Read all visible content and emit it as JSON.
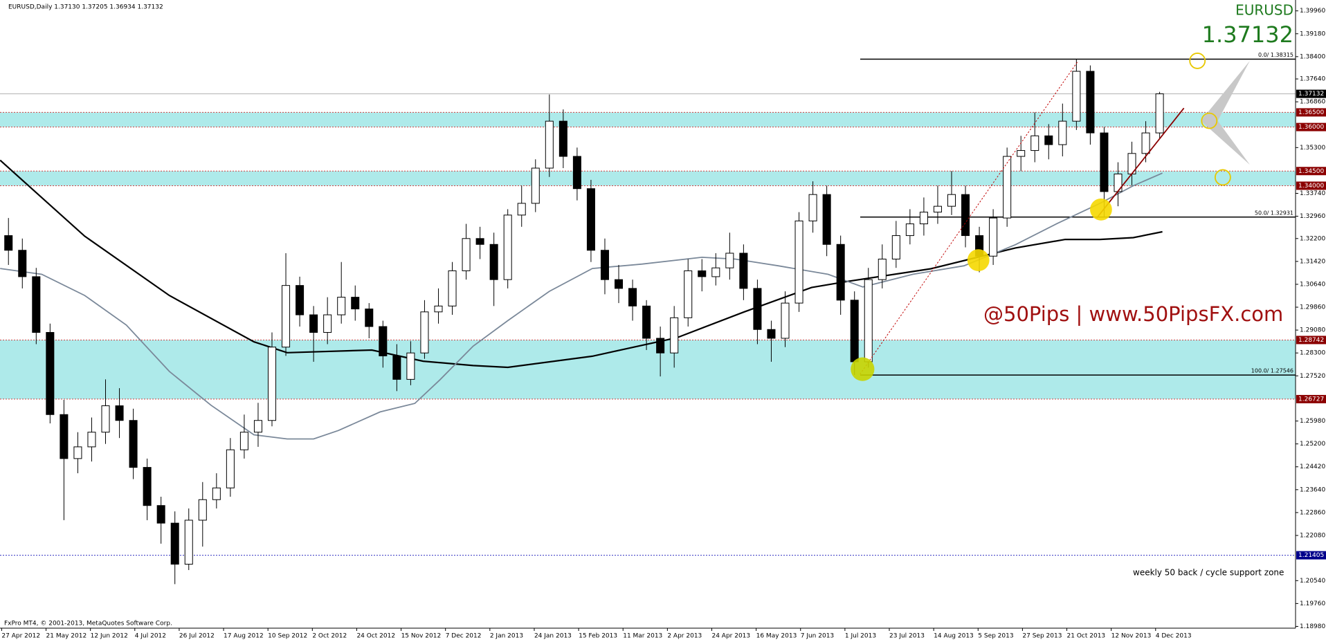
{
  "chart_data": {
    "type": "candlestick",
    "header": "EURUSD,Daily  1.37130 1.37205 1.36934 1.37132",
    "symbol": "EURUSD",
    "footer": "FxPro MT4, © 2001-2013, MetaQuotes Software Corp.",
    "watermark": "@50Pips | www.50PipsFX.com",
    "annotation": "weekly 50 back / cycle support zone",
    "current_price": {
      "value": 1.37132,
      "label": "1.37132"
    },
    "xlim": [
      -0.61,
      92.8
    ],
    "ylim": [
      1.1892,
      1.4033
    ],
    "xticks": [
      {
        "value": -0.49,
        "label": "27 Apr 2012"
      },
      {
        "value": 2.71,
        "label": "21 May 2012"
      },
      {
        "value": 5.91,
        "label": "12 Jun 2012"
      },
      {
        "value": 9.11,
        "label": "4 Jul 2012"
      },
      {
        "value": 12.31,
        "label": "26 Jul 2012"
      },
      {
        "value": 15.51,
        "label": "17 Aug 2012"
      },
      {
        "value": 18.71,
        "label": "10 Sep 2012"
      },
      {
        "value": 21.91,
        "label": "2 Oct 2012"
      },
      {
        "value": 25.11,
        "label": "24 Oct 2012"
      },
      {
        "value": 28.31,
        "label": "15 Nov 2012"
      },
      {
        "value": 31.51,
        "label": "7 Dec 2012"
      },
      {
        "value": 34.71,
        "label": "2 Jan 2013"
      },
      {
        "value": 37.91,
        "label": "24 Jan 2013"
      },
      {
        "value": 41.11,
        "label": "15 Feb 2013"
      },
      {
        "value": 44.31,
        "label": "11 Mar 2013"
      },
      {
        "value": 47.51,
        "label": "2 Apr 2013"
      },
      {
        "value": 50.71,
        "label": "24 Apr 2013"
      },
      {
        "value": 53.91,
        "label": "16 May 2013"
      },
      {
        "value": 57.11,
        "label": "7 Jun 2013"
      },
      {
        "value": 60.31,
        "label": "1 Jul 2013"
      },
      {
        "value": 63.51,
        "label": "23 Jul 2013"
      },
      {
        "value": 66.71,
        "label": "14 Aug 2013"
      },
      {
        "value": 69.91,
        "label": "5 Sep 2013"
      },
      {
        "value": 73.11,
        "label": "27 Sep 2013"
      },
      {
        "value": 76.31,
        "label": "21 Oct 2013"
      },
      {
        "value": 79.51,
        "label": "12 Nov 2013"
      },
      {
        "value": 82.71,
        "label": "4 Dec 2013"
      }
    ],
    "yticks": [
      {
        "value": 1.3996,
        "label": "1.39960"
      },
      {
        "value": 1.3918,
        "label": "1.39180"
      },
      {
        "value": 1.384,
        "label": "1.38400"
      },
      {
        "value": 1.3764,
        "label": "1.37640"
      },
      {
        "value": 1.3686,
        "label": "1.36860"
      },
      {
        "value": 1.353,
        "label": "1.35300"
      },
      {
        "value": 1.3374,
        "label": "1.33740"
      },
      {
        "value": 1.3296,
        "label": "1.32960"
      },
      {
        "value": 1.322,
        "label": "1.32200"
      },
      {
        "value": 1.3142,
        "label": "1.31420"
      },
      {
        "value": 1.3064,
        "label": "1.30640"
      },
      {
        "value": 1.2986,
        "label": "1.29860"
      },
      {
        "value": 1.2908,
        "label": "1.29080"
      },
      {
        "value": 1.283,
        "label": "1.28300"
      },
      {
        "value": 1.2752,
        "label": "1.27520"
      },
      {
        "value": 1.2598,
        "label": "1.25980"
      },
      {
        "value": 1.252,
        "label": "1.25200"
      },
      {
        "value": 1.2442,
        "label": "1.24420"
      },
      {
        "value": 1.2364,
        "label": "1.23640"
      },
      {
        "value": 1.2286,
        "label": "1.22860"
      },
      {
        "value": 1.2208,
        "label": "1.22080"
      },
      {
        "value": 1.2054,
        "label": "1.20540"
      },
      {
        "value": 1.1976,
        "label": "1.19760"
      },
      {
        "value": 1.1898,
        "label": "1.18980"
      }
    ],
    "open": [
      1.323,
      1.318,
      1.309,
      1.29,
      1.262,
      1.247,
      1.251,
      1.256,
      1.265,
      1.26,
      1.244,
      1.231,
      1.225,
      1.211,
      1.226,
      1.233,
      1.237,
      1.25,
      1.256,
      1.26,
      1.285,
      1.306,
      1.296,
      1.29,
      1.296,
      1.302,
      1.298,
      1.292,
      1.282,
      1.274,
      1.283,
      1.297,
      1.299,
      1.311,
      1.322,
      1.32,
      1.308,
      1.33,
      1.334,
      1.346,
      1.362,
      1.35,
      1.339,
      1.318,
      1.308,
      1.305,
      1.299,
      1.288,
      1.283,
      1.295,
      1.311,
      1.309,
      1.312,
      1.317,
      1.305,
      1.291,
      1.288,
      1.3,
      1.328,
      1.337,
      1.32,
      1.301,
      1.28,
      1.308,
      1.315,
      1.323,
      1.327,
      1.331,
      1.333,
      1.337,
      1.323,
      1.316,
      1.329,
      1.35,
      1.352,
      1.357,
      1.354,
      1.362,
      1.379,
      1.358,
      1.338,
      1.344,
      1.351,
      1.358
    ],
    "high": [
      1.329,
      1.322,
      1.312,
      1.293,
      1.267,
      1.256,
      1.261,
      1.274,
      1.271,
      1.264,
      1.247,
      1.234,
      1.229,
      1.23,
      1.239,
      1.242,
      1.254,
      1.262,
      1.266,
      1.29,
      1.317,
      1.309,
      1.299,
      1.302,
      1.314,
      1.306,
      1.3,
      1.294,
      1.286,
      1.287,
      1.301,
      1.305,
      1.314,
      1.327,
      1.326,
      1.324,
      1.332,
      1.34,
      1.349,
      1.3711,
      1.366,
      1.353,
      1.342,
      1.322,
      1.313,
      1.308,
      1.301,
      1.292,
      1.299,
      1.315,
      1.315,
      1.317,
      1.324,
      1.32,
      1.308,
      1.294,
      1.304,
      1.331,
      1.3415,
      1.34,
      1.323,
      1.304,
      1.312,
      1.32,
      1.328,
      1.332,
      1.336,
      1.34,
      1.345,
      1.34,
      1.326,
      1.332,
      1.353,
      1.357,
      1.365,
      1.361,
      1.368,
      1.3832,
      1.381,
      1.36,
      1.348,
      1.355,
      1.362,
      1.372
    ],
    "low": [
      1.313,
      1.305,
      1.286,
      1.259,
      1.226,
      1.242,
      1.246,
      1.252,
      1.254,
      1.24,
      1.226,
      1.218,
      1.2042,
      1.209,
      1.217,
      1.23,
      1.234,
      1.247,
      1.251,
      1.258,
      1.282,
      1.292,
      1.28,
      1.286,
      1.293,
      1.294,
      1.288,
      1.278,
      1.27,
      1.272,
      1.281,
      1.293,
      1.296,
      1.308,
      1.315,
      1.299,
      1.305,
      1.326,
      1.331,
      1.343,
      1.346,
      1.335,
      1.314,
      1.303,
      1.3,
      1.294,
      1.284,
      1.275,
      1.278,
      1.292,
      1.304,
      1.306,
      1.308,
      1.301,
      1.286,
      1.28,
      1.285,
      1.297,
      1.324,
      1.316,
      1.296,
      1.2755,
      1.278,
      1.305,
      1.312,
      1.32,
      1.323,
      1.327,
      1.33,
      1.319,
      1.3105,
      1.313,
      1.326,
      1.345,
      1.348,
      1.349,
      1.35,
      1.359,
      1.354,
      1.3295,
      1.333,
      1.34,
      1.348,
      1.356
    ],
    "close": [
      1.318,
      1.309,
      1.29,
      1.262,
      1.247,
      1.251,
      1.256,
      1.265,
      1.26,
      1.244,
      1.231,
      1.225,
      1.211,
      1.226,
      1.233,
      1.237,
      1.25,
      1.256,
      1.26,
      1.285,
      1.306,
      1.296,
      1.29,
      1.296,
      1.302,
      1.298,
      1.292,
      1.282,
      1.274,
      1.283,
      1.297,
      1.299,
      1.311,
      1.322,
      1.32,
      1.308,
      1.33,
      1.334,
      1.346,
      1.362,
      1.35,
      1.339,
      1.318,
      1.308,
      1.305,
      1.299,
      1.288,
      1.283,
      1.295,
      1.311,
      1.309,
      1.312,
      1.317,
      1.305,
      1.291,
      1.288,
      1.3,
      1.328,
      1.337,
      1.32,
      1.301,
      1.28,
      1.308,
      1.315,
      1.323,
      1.327,
      1.331,
      1.333,
      1.337,
      1.323,
      1.316,
      1.329,
      1.35,
      1.352,
      1.357,
      1.354,
      1.362,
      1.379,
      1.358,
      1.338,
      1.344,
      1.351,
      1.358,
      1.37132
    ],
    "overlays": [
      {
        "color": "#000000",
        "x": [
          -0.6,
          5.5,
          11.6,
          17.7,
          20.1,
          26.2,
          29.9,
          33.5,
          36.0,
          42.1,
          48.2,
          53.0,
          57.9,
          60.4,
          66.5,
          72.6,
          76.2,
          78.7,
          81.1,
          83.2
        ],
        "values": [
          1.3487,
          1.3228,
          1.3026,
          1.2868,
          1.2831,
          1.284,
          1.2802,
          1.2787,
          1.2781,
          1.2819,
          1.2882,
          1.2969,
          1.3053,
          1.3073,
          1.3117,
          1.3188,
          1.3217,
          1.3217,
          1.3223,
          1.3243
        ]
      },
      {
        "color": "#7a8899",
        "x": [
          -0.6,
          2.4,
          5.5,
          8.5,
          11.6,
          14.6,
          17.7,
          20.1,
          22.0,
          23.8,
          26.8,
          29.3,
          31.1,
          33.5,
          36.0,
          39.0,
          42.1,
          45.7,
          50.0,
          52.4,
          55.5,
          59.1,
          61.6,
          65.2,
          68.9,
          72.6,
          75.6,
          78.7,
          81.1,
          83.2
        ],
        "values": [
          1.3118,
          1.3098,
          1.3026,
          1.2925,
          1.2767,
          1.2652,
          1.2551,
          1.2537,
          1.2537,
          1.2566,
          1.2629,
          1.2658,
          1.2738,
          1.2853,
          1.294,
          1.304,
          1.3118,
          1.3133,
          1.3156,
          1.315,
          1.3127,
          1.3098,
          1.3055,
          1.3098,
          1.3127,
          1.3199,
          1.3271,
          1.334,
          1.34,
          1.3443
        ]
      }
    ],
    "zones": [
      {
        "top": 1.365,
        "bottom": 1.36,
        "color": "#aeeaea"
      },
      {
        "top": 1.345,
        "bottom": 1.34,
        "color": "#aeeaea"
      },
      {
        "top": 1.28742,
        "bottom": 1.26727,
        "color": "#aeeaea"
      }
    ],
    "levels": [
      {
        "value": 1.365,
        "label": "1.36500",
        "color": "#8b0000"
      },
      {
        "value": 1.36,
        "label": "1.36000",
        "color": "#8b0000"
      },
      {
        "value": 1.345,
        "label": "1.34500",
        "color": "#8b0000"
      },
      {
        "value": 1.34,
        "label": "1.34000",
        "color": "#8b0000"
      },
      {
        "value": 1.28742,
        "label": "1.28742",
        "color": "#8b0000"
      },
      {
        "value": 1.26727,
        "label": "1.26727",
        "color": "#8b0000"
      },
      {
        "value": 1.21405,
        "label": "1.21405",
        "color": "#00008b"
      }
    ],
    "fib_levels": [
      {
        "value": 1.38315,
        "label": "0.0/ 1.38315"
      },
      {
        "value": 1.32931,
        "label": "50.0/ 1.32931"
      },
      {
        "value": 1.27546,
        "label": "100.0/ 1.27546"
      }
    ]
  }
}
